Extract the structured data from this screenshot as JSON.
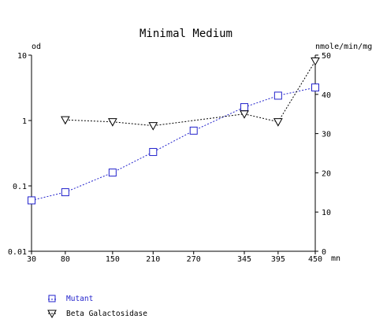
{
  "chart_data": {
    "type": "line",
    "title": "Minimal Medium",
    "x_unit_label": "mn",
    "left_axis_label": "od",
    "right_axis_label": "nmole/min/mg",
    "x": [
      30,
      80,
      150,
      210,
      270,
      345,
      395,
      450
    ],
    "x_tick_labels": [
      "30",
      "80",
      "150",
      "210",
      "270",
      "345",
      "395",
      "450"
    ],
    "left_axis": {
      "scale": "log",
      "range": [
        0.01,
        10
      ],
      "tick_labels": [
        "0.01",
        "0.1",
        "1",
        "10"
      ]
    },
    "right_axis": {
      "scale": "linear",
      "range": [
        0,
        50
      ],
      "tick_labels": [
        "0",
        "10",
        "20",
        "30",
        "40",
        "50"
      ]
    },
    "grid": false,
    "legend_position": "bottom-left",
    "series": [
      {
        "name": "Mutant",
        "axis": "left",
        "marker": "square",
        "color": "#2222cc",
        "points": [
          [
            30,
            0.06
          ],
          [
            80,
            0.08
          ],
          [
            150,
            0.16
          ],
          [
            210,
            0.33
          ],
          [
            270,
            0.7
          ],
          [
            345,
            1.6
          ],
          [
            395,
            2.4
          ],
          [
            450,
            3.2
          ]
        ]
      },
      {
        "name": "Beta Galactosidase",
        "axis": "right",
        "marker": "triangle-down",
        "color": "#000000",
        "points": [
          [
            80,
            33.5
          ],
          [
            150,
            33
          ],
          [
            210,
            32
          ],
          [
            345,
            35
          ],
          [
            395,
            33
          ],
          [
            450,
            48.5
          ]
        ]
      }
    ]
  }
}
